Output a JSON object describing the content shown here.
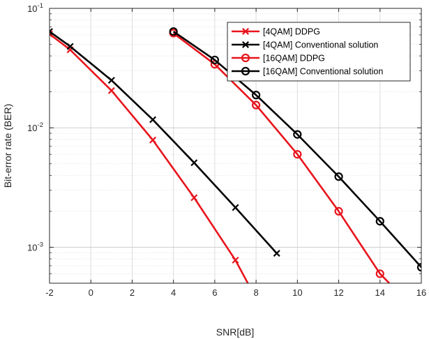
{
  "chart_data": {
    "type": "line",
    "xlabel": "SNR[dB]",
    "ylabel": "Bit-error rate (BER)",
    "xlim": [
      -2,
      16
    ],
    "ylim": [
      0.0005,
      0.1
    ],
    "yscale": "log",
    "x_ticks": [
      -2,
      0,
      2,
      4,
      6,
      8,
      10,
      12,
      14,
      16
    ],
    "x_tick_labels": [
      "-2",
      "0",
      "2",
      "4",
      "6",
      "8",
      "10",
      "12",
      "14",
      "16"
    ],
    "y_ticks": [
      0.001,
      0.01,
      0.1
    ],
    "y_tick_labels": [
      {
        "base": "10",
        "exp": "-3"
      },
      {
        "base": "10",
        "exp": "-2"
      },
      {
        "base": "10",
        "exp": "-1"
      }
    ],
    "grid": true,
    "minor_grid": true,
    "legend_position": "top-right",
    "series": [
      {
        "name": "[4QAM] DDPG",
        "color": "#e8141c",
        "marker": "x",
        "x": [
          -2,
          -1,
          1,
          3,
          5,
          7,
          7.6
        ],
        "y": [
          0.061,
          0.045,
          0.0205,
          0.0079,
          0.0026,
          0.00078,
          0.0005
        ]
      },
      {
        "name": "[4QAM] Conventional solution",
        "color": "#000000",
        "marker": "x",
        "x": [
          -2,
          -1,
          1,
          3,
          5,
          7,
          9
        ],
        "y": [
          0.064,
          0.048,
          0.025,
          0.0117,
          0.0051,
          0.00215,
          0.00089
        ]
      },
      {
        "name": "[16QAM] DDPG",
        "color": "#e8141c",
        "marker": "o",
        "x": [
          4,
          6,
          8,
          10,
          12,
          14,
          14.45
        ],
        "y": [
          0.062,
          0.034,
          0.0155,
          0.006,
          0.002,
          0.0006,
          0.0005
        ]
      },
      {
        "name": "[16QAM] Conventional solution",
        "color": "#000000",
        "marker": "o",
        "x": [
          4,
          6,
          8,
          10,
          12,
          14,
          16
        ],
        "y": [
          0.064,
          0.037,
          0.0188,
          0.0088,
          0.0039,
          0.00165,
          0.00068
        ]
      }
    ]
  }
}
